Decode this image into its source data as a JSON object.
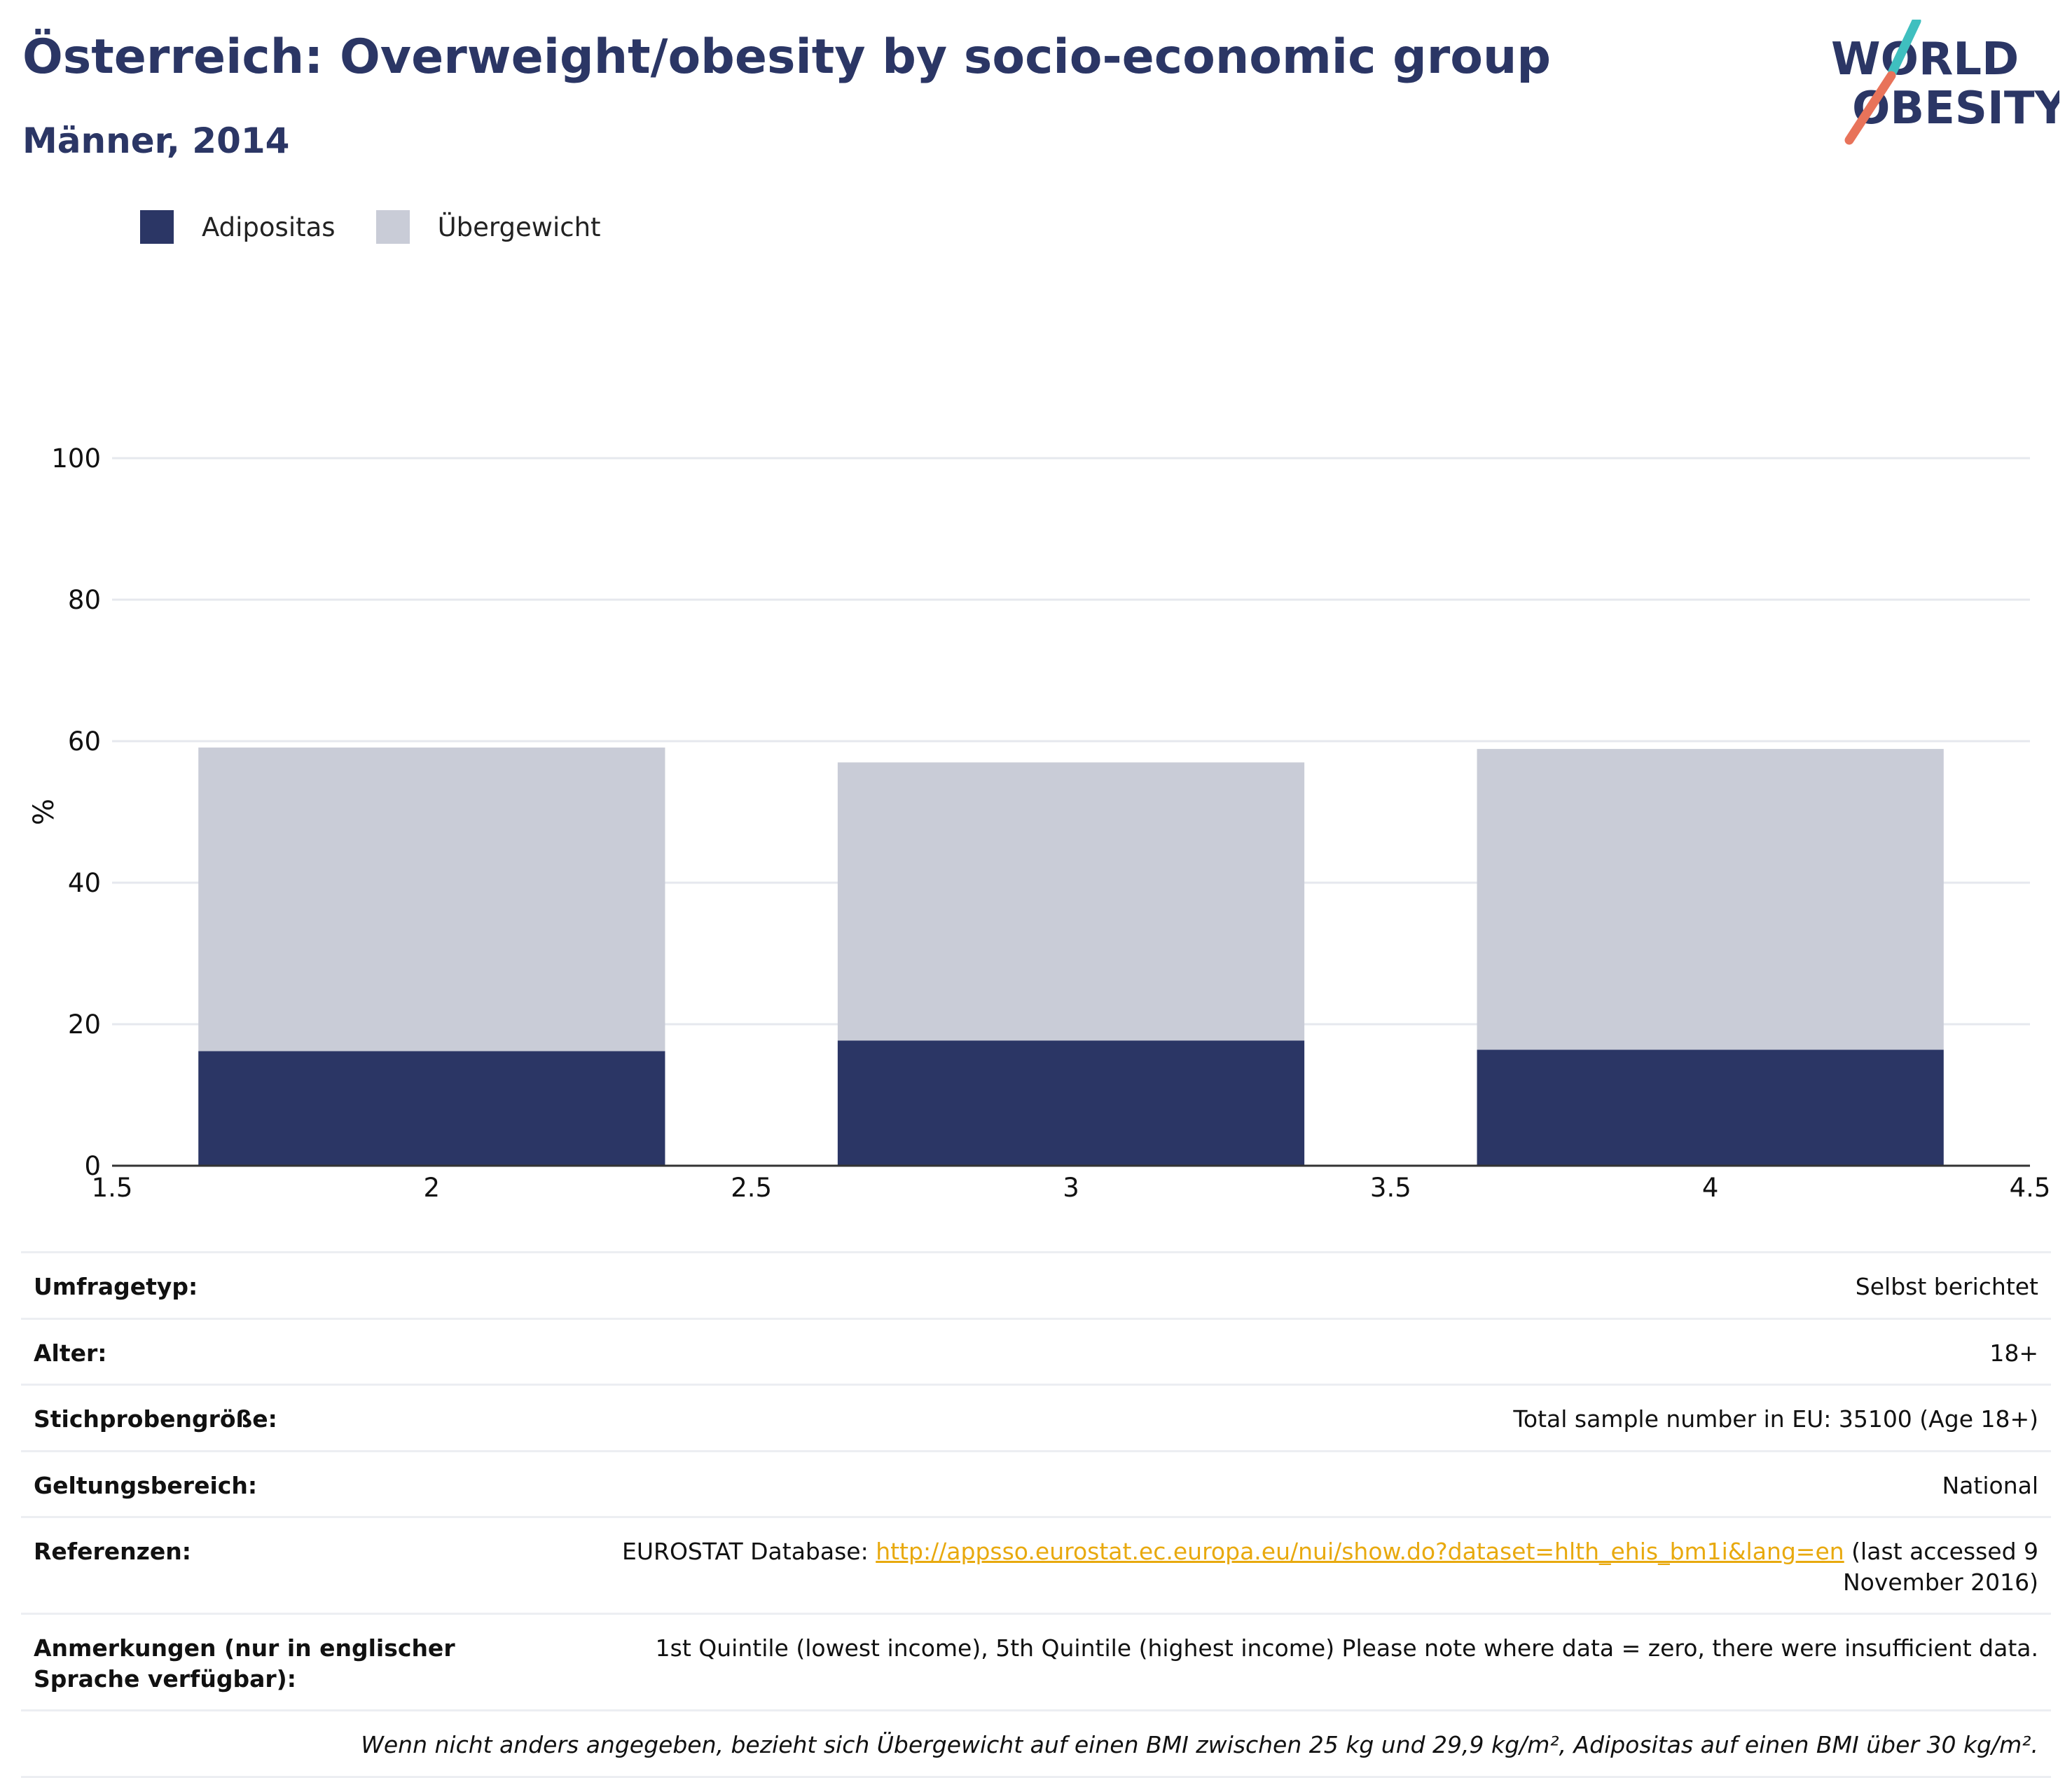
{
  "header": {
    "title": "Österreich: Overweight/obesity by socio-economic group",
    "subtitle": "Männer, 2014"
  },
  "logo": {
    "line1": "WORLD",
    "line2": "OBESITY",
    "colors": {
      "text": "#2b3665",
      "slash_top": "#3fbfbf",
      "slash_bottom": "#e8735a"
    }
  },
  "colors": {
    "obesity": "#2b3665",
    "overweight": "#c9ccd7",
    "grid": "#e6e8ee",
    "axis": "#333333"
  },
  "legend": {
    "items": [
      {
        "label": "Adipositas",
        "color": "#2b3665"
      },
      {
        "label": "Übergewicht",
        "color": "#c9ccd7"
      }
    ]
  },
  "chart_data": {
    "type": "bar",
    "stacked": true,
    "x": [
      2,
      3,
      4
    ],
    "x_ticks": [
      "1.5",
      "2",
      "2.5",
      "3",
      "3.5",
      "4",
      "4.5"
    ],
    "xlim": [
      1.5,
      4.5
    ],
    "y_ticks": [
      "0",
      "20",
      "40",
      "60",
      "80",
      "100"
    ],
    "ylim": [
      0,
      100
    ],
    "ylabel": "%",
    "grid": true,
    "legend_position": "top-left",
    "series": [
      {
        "name": "Adipositas",
        "values": [
          16.2,
          17.7,
          16.4
        ]
      },
      {
        "name": "Übergewicht",
        "values": [
          42.9,
          39.3,
          42.5
        ]
      }
    ]
  },
  "info": {
    "rows": [
      {
        "label": "Umfragetyp:",
        "value": "Selbst berichtet"
      },
      {
        "label": "Alter:",
        "value": "18+"
      },
      {
        "label": "Stichprobengröße:",
        "value": "Total sample number in EU: 35100 (Age 18+)"
      },
      {
        "label": "Geltungsbereich:",
        "value": "National"
      }
    ],
    "references": {
      "label": "Referenzen:",
      "prefix": "EUROSTAT Database: ",
      "link": "http://appsso.eurostat.ec.europa.eu/nui/show.do?dataset=hlth_ehis_bm1i&lang=en",
      "suffix": " (last accessed 9 November 2016)"
    },
    "notes": {
      "label": "Anmerkungen (nur in englischer Sprache verfügbar):",
      "value": "1st Quintile (lowest income), 5th Quintile (highest income) Please note where data = zero, there were insufficient data."
    },
    "footnote": "Wenn nicht anders angegeben, bezieht sich Übergewicht auf einen BMI zwischen 25 kg und 29,9 kg/m², Adipositas auf einen BMI über 30 kg/m²."
  }
}
